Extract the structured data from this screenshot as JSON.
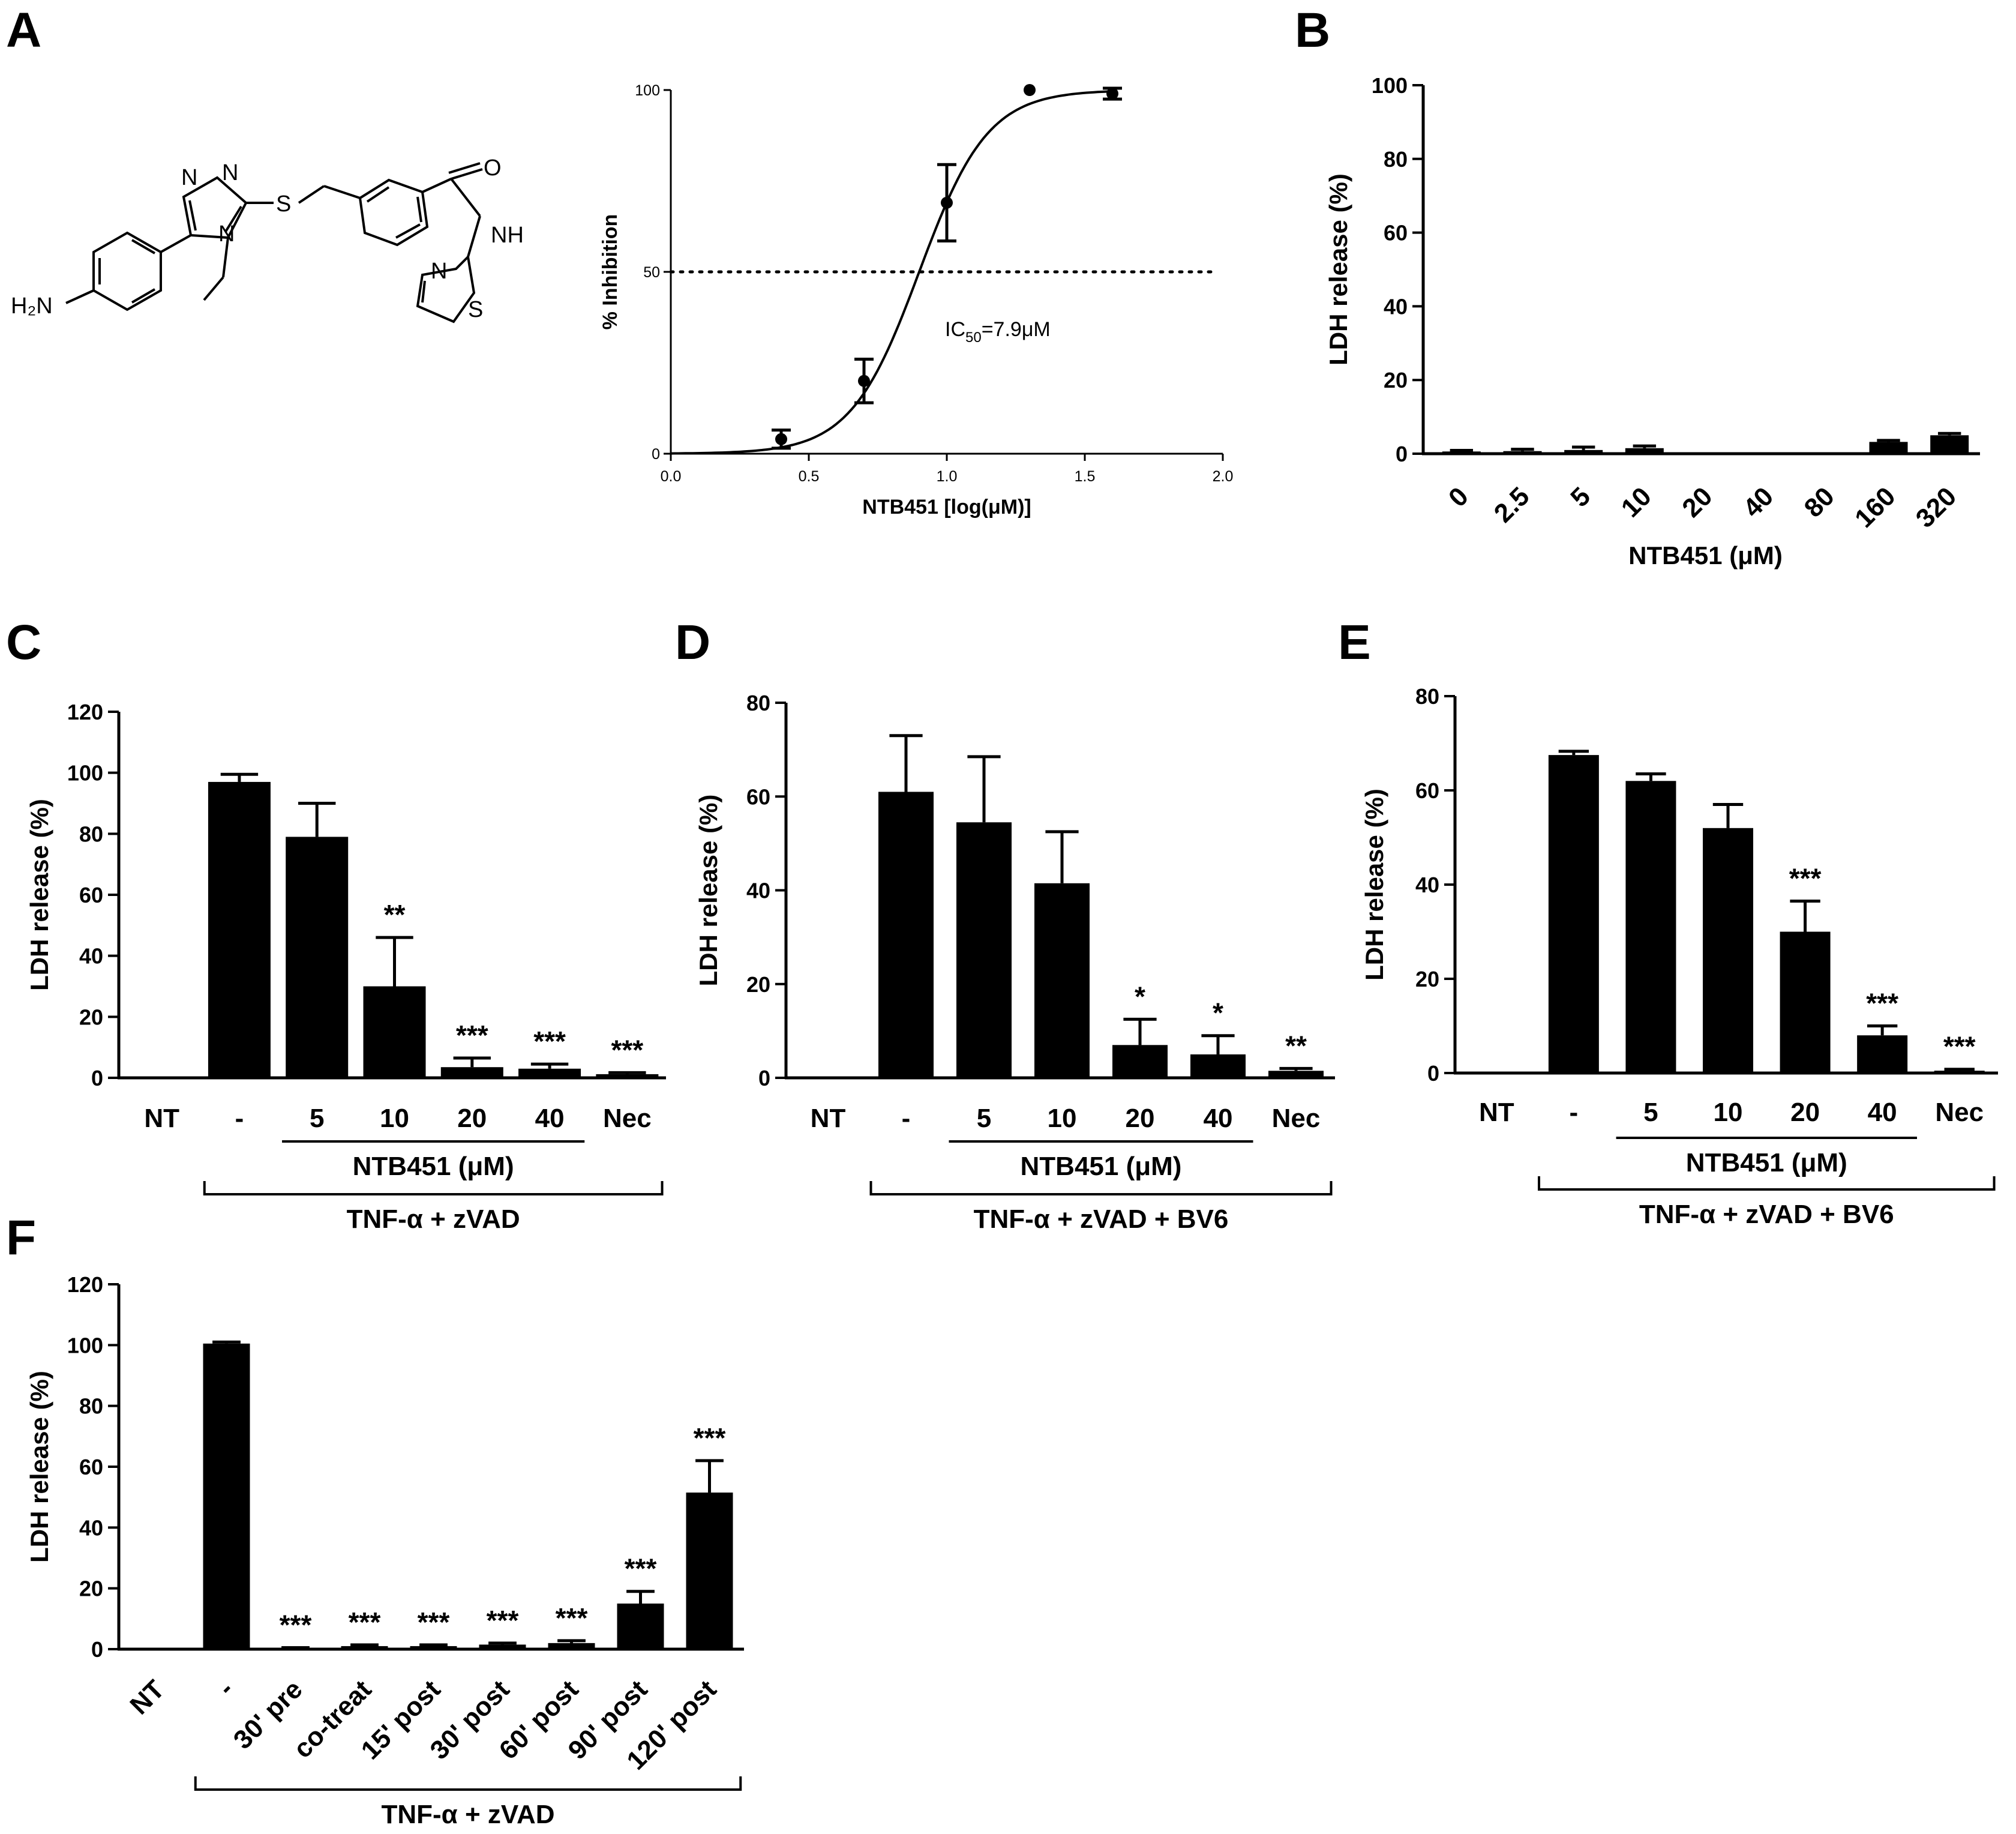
{
  "colors": {
    "ink": "#000000",
    "background": "#ffffff"
  },
  "panels": {
    "A": {
      "label": "A"
    },
    "B": {
      "label": "B"
    },
    "C": {
      "label": "C"
    },
    "D": {
      "label": "D"
    },
    "E": {
      "label": "E"
    },
    "F": {
      "label": "F"
    }
  },
  "molecule": {
    "atoms": [
      "H₂N",
      "N",
      "N",
      "N",
      "S",
      "O",
      "NH",
      "N",
      "S"
    ]
  },
  "chart_data": [
    {
      "id": "A",
      "type": "scatter",
      "title": "",
      "xlabel": "NTB451 [log(μM)]",
      "ylabel": "% Inhibition",
      "xlim": [
        0.0,
        2.0
      ],
      "ylim": [
        0,
        100
      ],
      "xticks": [
        "0.0",
        "0.5",
        "1.0",
        "1.5",
        "2.0"
      ],
      "yticks": [
        "0",
        "50",
        "100"
      ],
      "points": [
        {
          "x": 0.4,
          "y": 4,
          "err": 2.5
        },
        {
          "x": 0.7,
          "y": 20,
          "err": 6
        },
        {
          "x": 1.0,
          "y": 69,
          "err": 10.5
        },
        {
          "x": 1.3,
          "y": 100,
          "err": 0
        },
        {
          "x": 1.6,
          "y": 99,
          "err": 1.5
        }
      ],
      "fit": {
        "model": "sigmoid",
        "top": 100,
        "bottom": 0,
        "log_ic50": 0.9,
        "hill": 3.5,
        "x_range": [
          0.0,
          1.6
        ]
      },
      "reference_line": {
        "y": 50,
        "style": "dotted"
      },
      "annotation": {
        "text": "IC",
        "sub": "50",
        "rest": "=7.9μM"
      }
    },
    {
      "id": "B",
      "type": "bar",
      "title": "",
      "xlabel": "NTB451 (μM)",
      "ylabel": "LDH release (%)",
      "ylim": [
        0,
        100
      ],
      "yticks": [
        "0",
        "20",
        "40",
        "60",
        "80",
        "100"
      ],
      "categories": [
        "0",
        "2.5",
        "5",
        "10",
        "20",
        "40",
        "80",
        "160",
        "320"
      ],
      "values": [
        0.6,
        0.7,
        1.0,
        1.5,
        0,
        0,
        0,
        3.2,
        5.0
      ],
      "errors": [
        0.3,
        0.5,
        0.8,
        0.6,
        0,
        0,
        0,
        0.4,
        0.5
      ]
    },
    {
      "id": "C",
      "type": "bar",
      "title": "",
      "xlabel": "",
      "ylabel": "LDH release (%)",
      "ylim": [
        0,
        120
      ],
      "yticks": [
        "0",
        "20",
        "40",
        "60",
        "80",
        "100",
        "120"
      ],
      "categories": [
        "NT",
        "-",
        "5",
        "10",
        "20",
        "40",
        "Nec"
      ],
      "values": [
        0,
        97,
        79,
        30,
        3.5,
        3,
        1.2
      ],
      "errors": [
        0,
        2.5,
        11,
        16,
        3,
        1.5,
        0.5
      ],
      "significance": [
        "",
        "",
        "",
        "**",
        "***",
        "***",
        "***"
      ],
      "group_labels": {
        "inner": "NTB451 (μM)",
        "outer": "TNF-α + zVAD"
      }
    },
    {
      "id": "D",
      "type": "bar",
      "title": "",
      "xlabel": "",
      "ylabel": "LDH release (%)",
      "ylim": [
        0,
        80
      ],
      "yticks": [
        "0",
        "20",
        "40",
        "60",
        "80"
      ],
      "categories": [
        "NT",
        "-",
        "5",
        "10",
        "20",
        "40",
        "Nec"
      ],
      "values": [
        0,
        61,
        54.5,
        41.5,
        7,
        5,
        1.5
      ],
      "errors": [
        0,
        12,
        14,
        11,
        5.5,
        4,
        0.5
      ],
      "significance": [
        "",
        "",
        "",
        "",
        "*",
        "*",
        "**"
      ],
      "group_labels": {
        "inner": "NTB451 (μM)",
        "outer": "TNF-α + zVAD + BV6"
      }
    },
    {
      "id": "E",
      "type": "bar",
      "title": "",
      "xlabel": "",
      "ylabel": "LDH release (%)",
      "ylim": [
        0,
        80
      ],
      "yticks": [
        "0",
        "20",
        "40",
        "60",
        "80"
      ],
      "categories": [
        "NT",
        "-",
        "5",
        "10",
        "20",
        "40",
        "Nec"
      ],
      "values": [
        0,
        67.5,
        62,
        52,
        30,
        8,
        0.5
      ],
      "errors": [
        0,
        0.8,
        1.5,
        5,
        6.5,
        2,
        0.3
      ],
      "significance": [
        "",
        "",
        "",
        "",
        "***",
        "***",
        "***"
      ],
      "group_labels": {
        "inner": "NTB451 (μM)",
        "outer": "TNF-α + zVAD + BV6"
      }
    },
    {
      "id": "F",
      "type": "bar",
      "title": "",
      "xlabel": "",
      "ylabel": "LDH release (%)",
      "ylim": [
        0,
        120
      ],
      "yticks": [
        "0",
        "20",
        "40",
        "60",
        "80",
        "100",
        "120"
      ],
      "categories": [
        "NT",
        "-",
        "30' pre",
        "co-treat",
        "15' post",
        "30' post",
        "60' post",
        "90' post",
        "120' post"
      ],
      "values": [
        0,
        100.5,
        0.3,
        1,
        1,
        1.5,
        2,
        15,
        51.5
      ],
      "errors": [
        0,
        0.5,
        0.2,
        0.4,
        0.4,
        0.5,
        0.8,
        4,
        10.5
      ],
      "significance": [
        "",
        "",
        "***",
        "***",
        "***",
        "***",
        "***",
        "***",
        "***"
      ],
      "group_labels": {
        "outer": "TNF-α + zVAD"
      }
    }
  ]
}
